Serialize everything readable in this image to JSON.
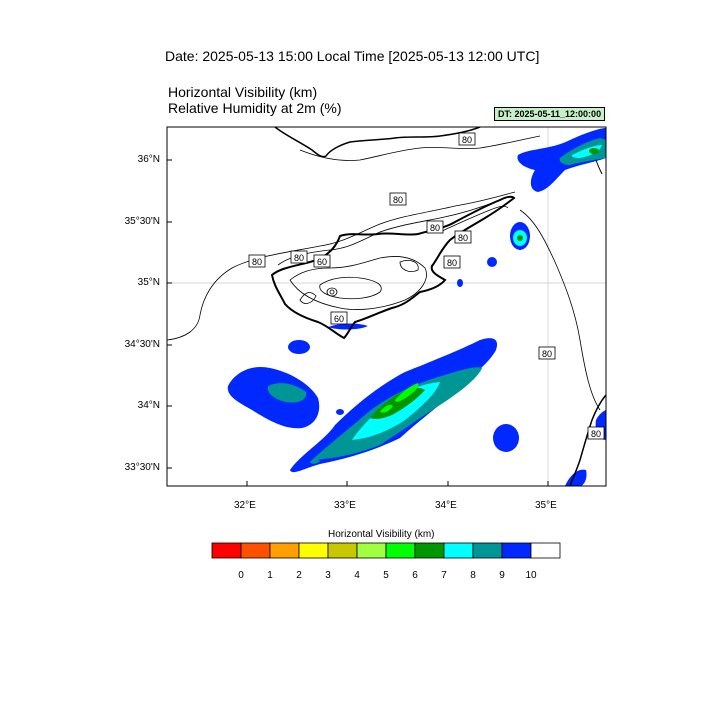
{
  "header": {
    "date_title": "Date: 2025-05-13  15:00 Local Time [2025-05-13  12:00 UTC]",
    "variable_line_1": "Horizontal Visibility   (km)",
    "variable_line_2": "Relative Humidity at 2m   (%)",
    "dt_badge": "DT: 2025-05-11_12:00:00",
    "dt_badge_color": "#c8f0c8"
  },
  "axes": {
    "lat_labels": [
      "36°N",
      "35°30'N",
      "35°N",
      "34°30'N",
      "34°N",
      "33°30'N"
    ],
    "lon_labels": [
      "32°E",
      "33°E",
      "34°E",
      "35°E"
    ]
  },
  "contour_labels": [
    "80",
    "80",
    "80",
    "80",
    "80",
    "80",
    "60",
    "80",
    "60",
    "80",
    "80"
  ],
  "colorbar": {
    "title": "Horizontal Visibility  (km)",
    "colors": [
      "#ff0000",
      "#ff5000",
      "#ffa000",
      "#ffff00",
      "#c8c800",
      "#a0ff40",
      "#00ff00",
      "#009600",
      "#00ffff",
      "#009696",
      "#0028ff",
      "#ffffff"
    ],
    "labels": [
      "0",
      "1",
      "2",
      "3",
      "4",
      "5",
      "6",
      "7",
      "8",
      "9",
      "10"
    ]
  }
}
